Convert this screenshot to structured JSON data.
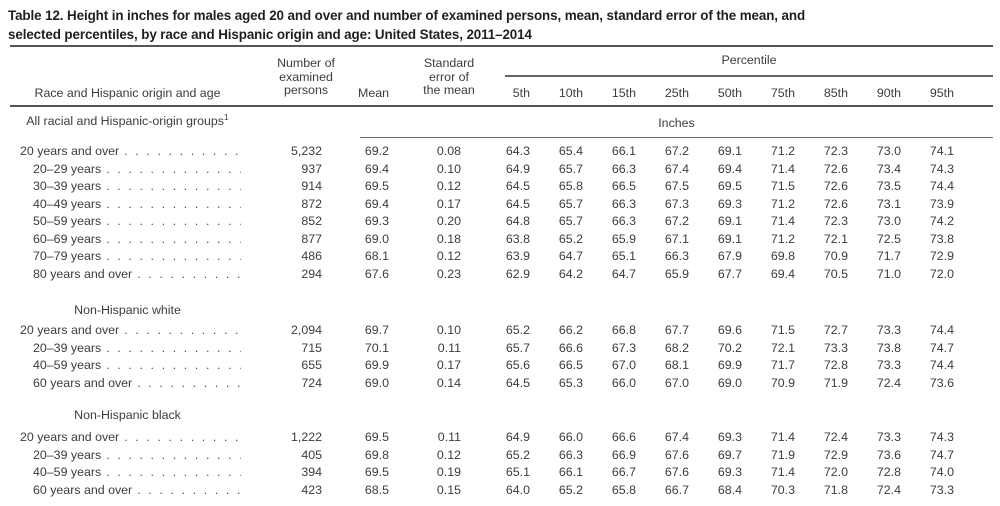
{
  "title": {
    "line1": "Table 12. Height in inches for males aged 20 and over and number of examined persons, mean, standard error of the mean, and",
    "line2": "selected percentiles, by race and Hispanic origin and age: United States, 2011–2014"
  },
  "header": {
    "stub_label": "Race and Hispanic origin and age",
    "n_label_line1": "Number of",
    "n_label_line2": "examined",
    "n_label_line3": "persons",
    "mean_label": "Mean",
    "se_label_line1": "Standard",
    "se_label_line2": "error of",
    "se_label_line3": "the mean",
    "percentile_label": "Percentile",
    "percentile_cols": [
      "5th",
      "10th",
      "15th",
      "25th",
      "50th",
      "75th",
      "85th",
      "90th",
      "95th"
    ],
    "unit_label": "Inches"
  },
  "sections": [
    {
      "label": "All racial and Hispanic-origin groups",
      "label_sup": "1",
      "rows": [
        {
          "label": "20 years and over",
          "indent": 0,
          "n": "5,232",
          "mean": "69.2",
          "se": "0.08",
          "p": [
            "64.3",
            "65.4",
            "66.1",
            "67.2",
            "69.1",
            "71.2",
            "72.3",
            "73.0",
            "74.1"
          ]
        },
        {
          "label": "20–29 years",
          "indent": 1,
          "n": "937",
          "mean": "69.4",
          "se": "0.10",
          "p": [
            "64.9",
            "65.7",
            "66.3",
            "67.4",
            "69.4",
            "71.4",
            "72.6",
            "73.4",
            "74.3"
          ]
        },
        {
          "label": "30–39 years",
          "indent": 1,
          "n": "914",
          "mean": "69.5",
          "se": "0.12",
          "p": [
            "64.5",
            "65.8",
            "66.5",
            "67.5",
            "69.5",
            "71.5",
            "72.6",
            "73.5",
            "74.4"
          ]
        },
        {
          "label": "40–49 years",
          "indent": 1,
          "n": "872",
          "mean": "69.4",
          "se": "0.17",
          "p": [
            "64.5",
            "65.7",
            "66.3",
            "67.3",
            "69.3",
            "71.2",
            "72.6",
            "73.1",
            "73.9"
          ]
        },
        {
          "label": "50–59 years",
          "indent": 1,
          "n": "852",
          "mean": "69.3",
          "se": "0.20",
          "p": [
            "64.8",
            "65.7",
            "66.3",
            "67.2",
            "69.1",
            "71.4",
            "72.3",
            "73.0",
            "74.2"
          ]
        },
        {
          "label": "60–69 years",
          "indent": 1,
          "n": "877",
          "mean": "69.0",
          "se": "0.18",
          "p": [
            "63.8",
            "65.2",
            "65.9",
            "67.1",
            "69.1",
            "71.2",
            "72.1",
            "72.5",
            "73.8"
          ]
        },
        {
          "label": "70–79 years",
          "indent": 1,
          "n": "486",
          "mean": "68.1",
          "se": "0.12",
          "p": [
            "63.9",
            "64.7",
            "65.1",
            "66.3",
            "67.9",
            "69.8",
            "70.9",
            "71.7",
            "72.9"
          ]
        },
        {
          "label": "80 years and over",
          "indent": 1,
          "n": "294",
          "mean": "67.6",
          "se": "0.23",
          "p": [
            "62.9",
            "64.2",
            "64.7",
            "65.9",
            "67.7",
            "69.4",
            "70.5",
            "71.0",
            "72.0"
          ]
        }
      ]
    },
    {
      "label": "Non-Hispanic white",
      "label_sup": "",
      "rows": [
        {
          "label": "20 years and over",
          "indent": 0,
          "n": "2,094",
          "mean": "69.7",
          "se": "0.10",
          "p": [
            "65.2",
            "66.2",
            "66.8",
            "67.7",
            "69.6",
            "71.5",
            "72.7",
            "73.3",
            "74.4"
          ]
        },
        {
          "label": "20–39 years",
          "indent": 1,
          "n": "715",
          "mean": "70.1",
          "se": "0.11",
          "p": [
            "65.7",
            "66.6",
            "67.3",
            "68.2",
            "70.2",
            "72.1",
            "73.3",
            "73.8",
            "74.7"
          ]
        },
        {
          "label": "40–59 years",
          "indent": 1,
          "n": "655",
          "mean": "69.9",
          "se": "0.17",
          "p": [
            "65.6",
            "66.5",
            "67.0",
            "68.1",
            "69.9",
            "71.7",
            "72.8",
            "73.3",
            "74.4"
          ]
        },
        {
          "label": "60 years and over",
          "indent": 1,
          "n": "724",
          "mean": "69.0",
          "se": "0.14",
          "p": [
            "64.5",
            "65.3",
            "66.0",
            "67.0",
            "69.0",
            "70.9",
            "71.9",
            "72.4",
            "73.6"
          ]
        }
      ]
    },
    {
      "label": "Non-Hispanic black",
      "label_sup": "",
      "rows": [
        {
          "label": "20 years and over",
          "indent": 0,
          "n": "1,222",
          "mean": "69.5",
          "se": "0.11",
          "p": [
            "64.9",
            "66.0",
            "66.6",
            "67.4",
            "69.3",
            "71.4",
            "72.4",
            "73.3",
            "74.3"
          ]
        },
        {
          "label": "20–39 years",
          "indent": 1,
          "n": "405",
          "mean": "69.8",
          "se": "0.12",
          "p": [
            "65.2",
            "66.3",
            "66.9",
            "67.6",
            "69.7",
            "71.9",
            "72.9",
            "73.6",
            "74.7"
          ]
        },
        {
          "label": "40–59 years",
          "indent": 1,
          "n": "394",
          "mean": "69.5",
          "se": "0.19",
          "p": [
            "65.1",
            "66.1",
            "66.7",
            "67.6",
            "69.3",
            "71.4",
            "72.0",
            "72.8",
            "74.0"
          ]
        },
        {
          "label": "60 years and over",
          "indent": 1,
          "n": "423",
          "mean": "68.5",
          "se": "0.15",
          "p": [
            "64.0",
            "65.2",
            "65.8",
            "66.7",
            "68.4",
            "70.3",
            "71.8",
            "72.4",
            "73.3"
          ]
        }
      ]
    }
  ]
}
